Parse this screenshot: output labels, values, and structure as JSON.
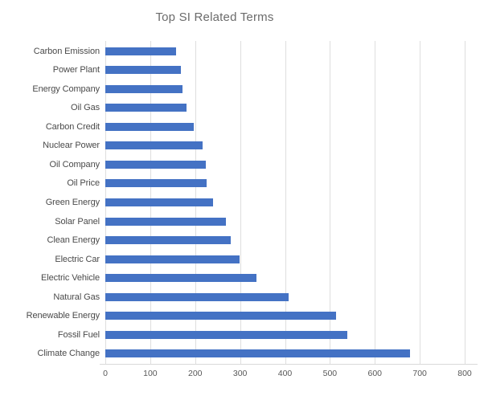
{
  "chart_data": {
    "type": "bar",
    "orientation": "horizontal",
    "title": "Top SI Related Terms",
    "categories": [
      "Carbon Emission",
      "Power Plant",
      "Energy Company",
      "Oil Gas",
      "Carbon Credit",
      "Nuclear Power",
      "Oil Company",
      "Oil Price",
      "Green Energy",
      "Solar Panel",
      "Clean Energy",
      "Electric Car",
      "Electric Vehicle",
      "Natural Gas",
      "Renewable Energy",
      "Fossil Fuel",
      "Climate Change"
    ],
    "values": [
      157,
      168,
      172,
      181,
      197,
      216,
      223,
      225,
      240,
      268,
      279,
      298,
      337,
      408,
      514,
      538,
      678
    ],
    "xlabel": "",
    "ylabel": "",
    "xlim": [
      0,
      800
    ],
    "x_tick_labels": [
      "0",
      "100",
      "200",
      "300",
      "400",
      "500",
      "600",
      "700",
      "800"
    ],
    "x_tick_values": [
      0,
      100,
      200,
      300,
      400,
      500,
      600,
      700,
      800
    ],
    "grid": true,
    "legend_position": "none"
  },
  "colors": {
    "bar": "#4472c4",
    "gridline": "#dedede",
    "axis_line": "#d9d9d9",
    "title_text": "#6b6b6b",
    "category_label_text": "#4a4a4a",
    "tick_label_text": "#595959",
    "background": "#ffffff"
  }
}
